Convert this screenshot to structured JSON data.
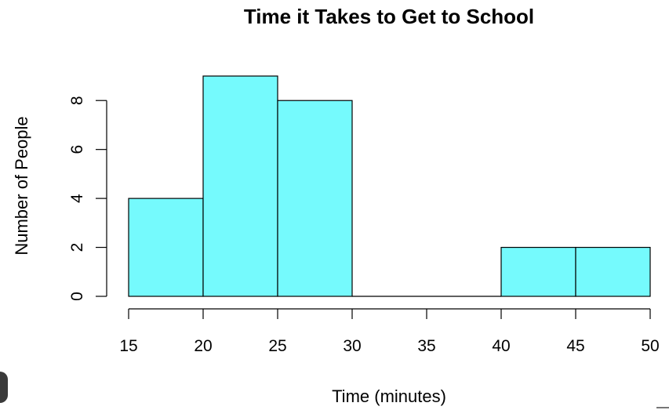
{
  "chart_data": {
    "type": "bar",
    "title": "Time it Takes to Get to School",
    "xlabel": "Time (minutes)",
    "ylabel": "Number of People",
    "bins": [
      {
        "from": 15,
        "to": 20,
        "count": 4
      },
      {
        "from": 20,
        "to": 25,
        "count": 9
      },
      {
        "from": 25,
        "to": 30,
        "count": 8
      },
      {
        "from": 30,
        "to": 35,
        "count": 0
      },
      {
        "from": 35,
        "to": 40,
        "count": 0
      },
      {
        "from": 40,
        "to": 45,
        "count": 2
      },
      {
        "from": 45,
        "to": 50,
        "count": 2
      }
    ],
    "xticks": [
      "15",
      "20",
      "25",
      "30",
      "35",
      "40",
      "45",
      "50"
    ],
    "yticks": [
      "0",
      "2",
      "4",
      "6",
      "8"
    ],
    "xlim": [
      15,
      50
    ],
    "ylim": [
      0,
      9
    ],
    "bar_color": "#75FAFD",
    "grid": false
  }
}
